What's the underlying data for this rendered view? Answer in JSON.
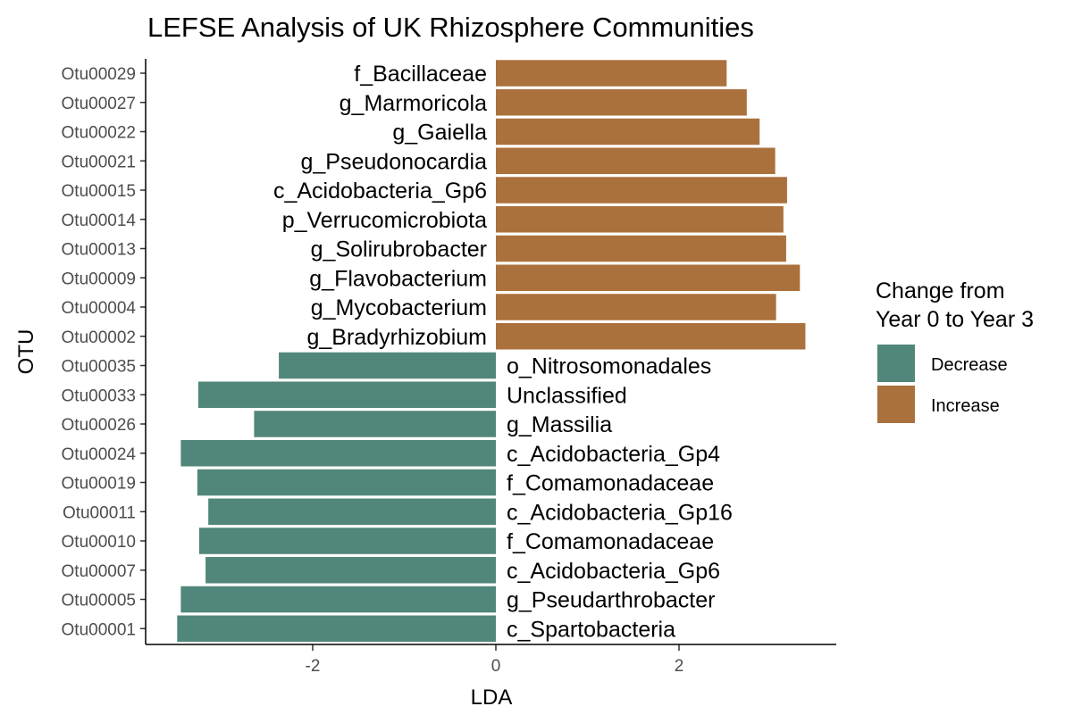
{
  "chart_data": {
    "type": "bar",
    "orientation": "horizontal",
    "title": "LEFSE Analysis of UK Rhizosphere Communities",
    "xlabel": "LDA",
    "ylabel": "OTU",
    "xlim": [
      -3.8,
      3.75
    ],
    "xticks": [
      -2,
      0,
      2
    ],
    "xtick_labels": [
      "-2",
      "0",
      "2"
    ],
    "grid": false,
    "legend": {
      "title_lines": [
        "Change from",
        "Year 0 to Year 3"
      ],
      "placement": "right",
      "entries": [
        {
          "label": "Decrease",
          "color": "#51877a"
        },
        {
          "label": "Increase",
          "color": "#ab713c"
        }
      ]
    },
    "bars": [
      {
        "otu": "Otu00029",
        "taxon": "f_Bacillaceae",
        "lda": 2.52,
        "group": "Increase"
      },
      {
        "otu": "Otu00027",
        "taxon": "g_Marmoricola",
        "lda": 2.74,
        "group": "Increase"
      },
      {
        "otu": "Otu00022",
        "taxon": "g_Gaiella",
        "lda": 2.88,
        "group": "Increase"
      },
      {
        "otu": "Otu00021",
        "taxon": "g_Pseudonocardia",
        "lda": 3.05,
        "group": "Increase"
      },
      {
        "otu": "Otu00015",
        "taxon": "c_Acidobacteria_Gp6",
        "lda": 3.18,
        "group": "Increase"
      },
      {
        "otu": "Otu00014",
        "taxon": "p_Verrucomicrobiota",
        "lda": 3.14,
        "group": "Increase"
      },
      {
        "otu": "Otu00013",
        "taxon": "g_Solirubrobacter",
        "lda": 3.17,
        "group": "Increase"
      },
      {
        "otu": "Otu00009",
        "taxon": "g_Flavobacterium",
        "lda": 3.32,
        "group": "Increase"
      },
      {
        "otu": "Otu00004",
        "taxon": "g_Mycobacterium",
        "lda": 3.06,
        "group": "Increase"
      },
      {
        "otu": "Otu00002",
        "taxon": "g_Bradyrhizobium",
        "lda": 3.38,
        "group": "Increase"
      },
      {
        "otu": "Otu00035",
        "taxon": "o_Nitrosomonadales",
        "lda": -2.37,
        "group": "Decrease"
      },
      {
        "otu": "Otu00033",
        "taxon": "Unclassified",
        "lda": -3.25,
        "group": "Decrease"
      },
      {
        "otu": "Otu00026",
        "taxon": "g_Massilia",
        "lda": -2.64,
        "group": "Decrease"
      },
      {
        "otu": "Otu00024",
        "taxon": "c_Acidobacteria_Gp4",
        "lda": -3.44,
        "group": "Decrease"
      },
      {
        "otu": "Otu00019",
        "taxon": "f_Comamonadaceae",
        "lda": -3.26,
        "group": "Decrease"
      },
      {
        "otu": "Otu00011",
        "taxon": "c_Acidobacteria_Gp16",
        "lda": -3.14,
        "group": "Decrease"
      },
      {
        "otu": "Otu00010",
        "taxon": "f_Comamonadaceae",
        "lda": -3.24,
        "group": "Decrease"
      },
      {
        "otu": "Otu00007",
        "taxon": "c_Acidobacteria_Gp6",
        "lda": -3.17,
        "group": "Decrease"
      },
      {
        "otu": "Otu00005",
        "taxon": "g_Pseudarthrobacter",
        "lda": -3.44,
        "group": "Decrease"
      },
      {
        "otu": "Otu00001",
        "taxon": "c_Spartobacteria",
        "lda": -3.48,
        "group": "Decrease"
      }
    ]
  }
}
